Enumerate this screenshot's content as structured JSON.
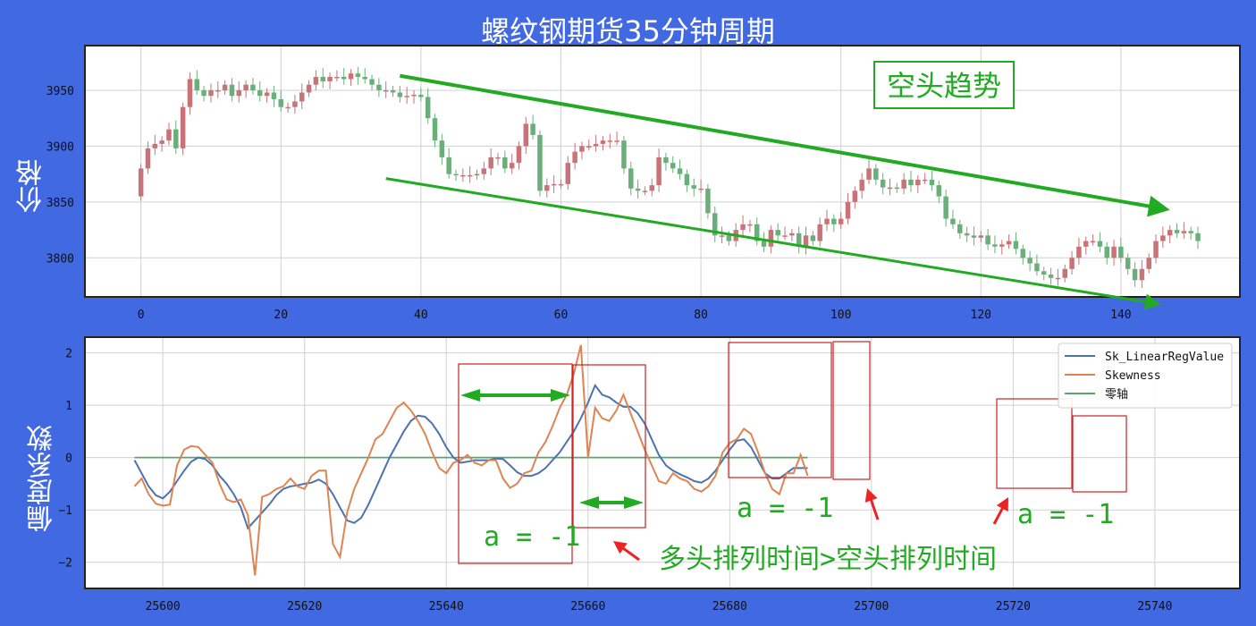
{
  "page": {
    "title": "螺纹钢期货35分钟周期"
  },
  "colors": {
    "background": "#4169e1",
    "up": "#c87377",
    "down": "#6aaf7a",
    "blue": "#4c72b0",
    "orange": "#dd8452",
    "green": "#55a868",
    "annot_green": "#22aa22",
    "annot_red": "#ee2222"
  },
  "chart_data": [
    {
      "type": "candlestick",
      "ylabel": "价格",
      "xlim": [
        -8,
        157
      ],
      "ylim": [
        3765,
        3990
      ],
      "x_ticks": [
        0,
        20,
        40,
        60,
        80,
        100,
        120,
        140
      ],
      "y_ticks": [
        3800,
        3850,
        3900,
        3950
      ],
      "annotations": {
        "trend_label": "空头趋势"
      },
      "close": [
        3880,
        3898,
        3902,
        3905,
        3915,
        3898,
        3935,
        3960,
        3950,
        3945,
        3950,
        3950,
        3955,
        3945,
        3950,
        3955,
        3950,
        3945,
        3948,
        3942,
        3935,
        3935,
        3940,
        3948,
        3955,
        3962,
        3958,
        3962,
        3962,
        3960,
        3965,
        3962,
        3960,
        3955,
        3950,
        3950,
        3948,
        3944,
        3945,
        3946,
        3944,
        3925,
        3905,
        3890,
        3875,
        3874,
        3874,
        3874,
        3875,
        3880,
        3890,
        3890,
        3880,
        3885,
        3900,
        3920,
        3910,
        3860,
        3865,
        3866,
        3866,
        3885,
        3895,
        3900,
        3900,
        3902,
        3905,
        3905,
        3905,
        3880,
        3862,
        3860,
        3860,
        3865,
        3890,
        3885,
        3880,
        3875,
        3865,
        3862,
        3862,
        3840,
        3820,
        3820,
        3815,
        3825,
        3830,
        3830,
        3815,
        3810,
        3825,
        3820,
        3820,
        3822,
        3810,
        3820,
        3815,
        3830,
        3835,
        3830,
        3835,
        3850,
        3860,
        3870,
        3880,
        3870,
        3863,
        3863,
        3862,
        3870,
        3865,
        3870,
        3870,
        3865,
        3855,
        3835,
        3830,
        3822,
        3820,
        3818,
        3820,
        3812,
        3810,
        3812,
        3815,
        3808,
        3800,
        3795,
        3788,
        3785,
        3782,
        3782,
        3790,
        3800,
        3810,
        3815,
        3815,
        3810,
        3800,
        3810,
        3800,
        3790,
        3780,
        3790,
        3800,
        3815,
        3820,
        3825,
        3822,
        3824,
        3822,
        3815
      ],
      "annot_lines": [
        {
          "x1": 37,
          "y1": 3963,
          "x2": 146,
          "y2": 3844,
          "kind": "upper_trend"
        },
        {
          "x1": 35,
          "y1": 3871,
          "x2": 145,
          "y2": 3759,
          "kind": "lower_trend"
        }
      ]
    },
    {
      "type": "line",
      "ylabel": "偏度系数",
      "xlim": [
        25589,
        25752
      ],
      "ylim": [
        -2.5,
        2.3
      ],
      "x_ticks": [
        25600,
        25620,
        25640,
        25660,
        25680,
        25700,
        25720,
        25740
      ],
      "y_ticks": [
        -2,
        -1,
        0,
        1,
        2
      ],
      "x_start": 25596,
      "legend_position": "top-right",
      "series": [
        {
          "name": "Sk_LinearRegValue",
          "color": "#4c72b0",
          "values": [
            -0.05,
            -0.3,
            -0.55,
            -0.72,
            -0.78,
            -0.65,
            -0.45,
            -0.25,
            -0.08,
            0.0,
            -0.03,
            -0.15,
            -0.35,
            -0.5,
            -0.7,
            -0.95,
            -1.35,
            -1.2,
            -1.05,
            -0.9,
            -0.72,
            -0.6,
            -0.55,
            -0.53,
            -0.5,
            -0.48,
            -0.42,
            -0.5,
            -0.7,
            -0.95,
            -1.2,
            -1.25,
            -1.15,
            -0.9,
            -0.6,
            -0.3,
            0.0,
            0.25,
            0.5,
            0.7,
            0.8,
            0.78,
            0.65,
            0.45,
            0.2,
            0.0,
            -0.1,
            -0.08,
            -0.05,
            -0.05,
            -0.05,
            -0.02,
            -0.03,
            -0.15,
            -0.28,
            -0.35,
            -0.35,
            -0.3,
            -0.2,
            -0.05,
            0.1,
            0.3,
            0.5,
            0.75,
            1.05,
            1.38,
            1.2,
            1.15,
            1.05,
            0.97,
            0.97,
            0.85,
            0.65,
            0.35,
            0.05,
            -0.15,
            -0.25,
            -0.32,
            -0.38,
            -0.45,
            -0.48,
            -0.4,
            -0.25,
            -0.05,
            0.15,
            0.32,
            0.35,
            0.2,
            -0.05,
            -0.3,
            -0.4,
            -0.4,
            -0.3,
            -0.2,
            -0.2,
            -0.2
          ]
        },
        {
          "name": "Skewness",
          "color": "#dd8452",
          "values": [
            -0.55,
            -0.4,
            -0.7,
            -0.88,
            -0.92,
            -0.9,
            -0.15,
            0.15,
            0.22,
            0.2,
            0.05,
            -0.1,
            -0.5,
            -0.8,
            -0.85,
            -0.8,
            -1.1,
            -2.25,
            -0.75,
            -0.7,
            -0.6,
            -0.55,
            -0.4,
            -0.55,
            -0.6,
            -0.35,
            -0.25,
            -0.25,
            -1.65,
            -1.9,
            -1.05,
            -0.6,
            -0.3,
            0.0,
            0.35,
            0.45,
            0.7,
            0.95,
            1.05,
            0.9,
            0.7,
            0.45,
            0.1,
            -0.2,
            -0.3,
            -0.1,
            -0.05,
            0.05,
            -0.1,
            -0.15,
            -0.05,
            -0.05,
            -0.4,
            -0.58,
            -0.5,
            -0.3,
            -0.25,
            0.1,
            0.3,
            0.6,
            0.95,
            1.2,
            1.6,
            2.15,
            0.0,
            0.95,
            0.75,
            0.7,
            0.9,
            1.2,
            0.85,
            0.5,
            0.15,
            -0.15,
            -0.45,
            -0.5,
            -0.3,
            -0.4,
            -0.45,
            -0.6,
            -0.65,
            -0.55,
            -0.35,
            0.1,
            0.28,
            0.35,
            0.55,
            0.45,
            0.1,
            -0.3,
            -0.6,
            -0.7,
            -0.3,
            -0.3,
            0.05,
            -0.35
          ]
        },
        {
          "name": "零轴",
          "color": "#55a868",
          "values": [
            0,
            0
          ]
        }
      ],
      "annotations": {
        "a_label_1": "a = -1",
        "a_label_2": "a = -1",
        "a_label_3": "a = -1",
        "note": "多头排列时间>空头排列时间"
      }
    }
  ]
}
